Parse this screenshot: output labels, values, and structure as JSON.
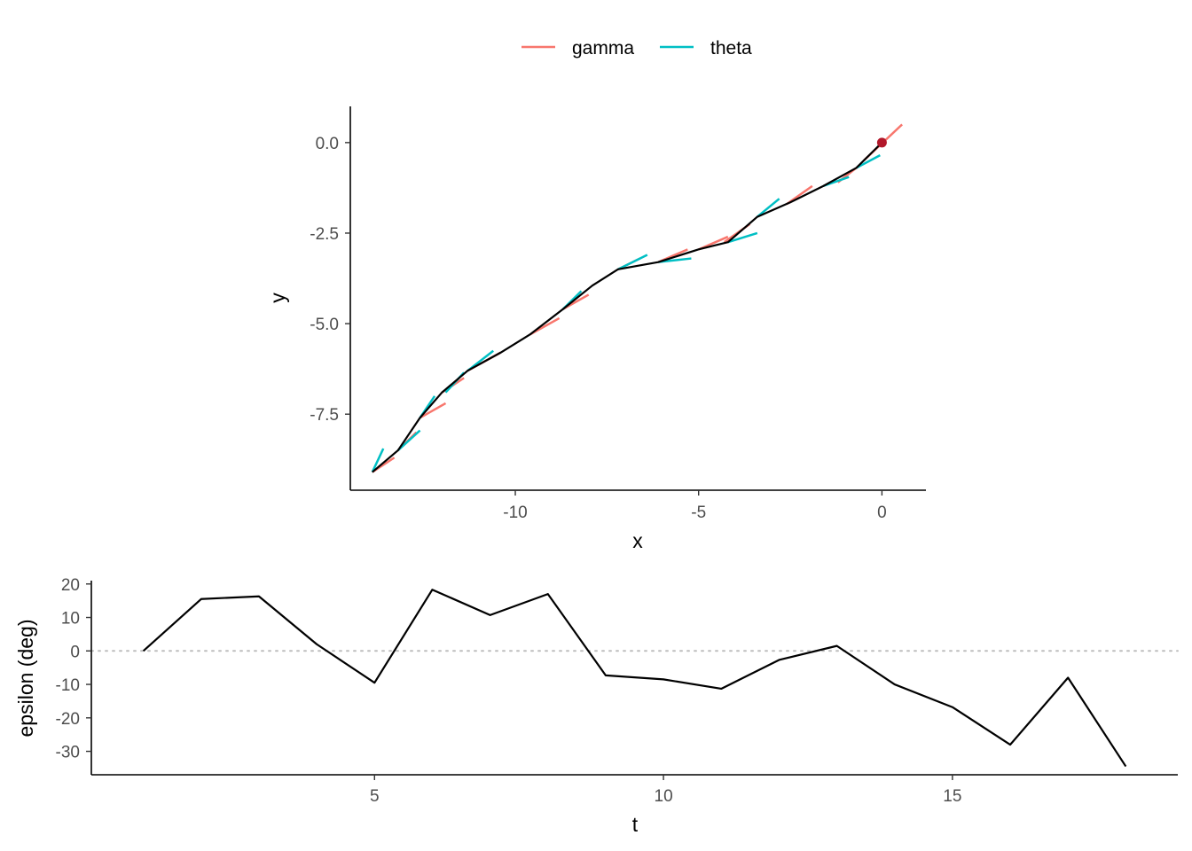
{
  "legend": {
    "placement": "top-center",
    "items": [
      {
        "label": "gamma",
        "color": "#F8766D"
      },
      {
        "label": "theta",
        "color": "#00BFC4"
      }
    ]
  },
  "chart_data": [
    {
      "type": "line",
      "title": "",
      "xlabel": "x",
      "ylabel": "y",
      "xlim": [
        -14.5,
        1.2
      ],
      "ylim": [
        -9.6,
        1.0
      ],
      "x_ticks": [
        -10,
        -5,
        0
      ],
      "x_tick_labels": [
        "-10",
        "-5",
        "0"
      ],
      "y_ticks": [
        0,
        -2.5,
        -5,
        -7.5
      ],
      "y_tick_labels": [
        "0.0",
        "-2.5",
        "-5.0",
        "-7.5"
      ],
      "grid": false,
      "path_color": "#000000",
      "path": {
        "x": [
          0,
          -0.7,
          -1.6,
          -2.5,
          -3.4,
          -4.2,
          -5.0,
          -6.1,
          -7.2,
          -7.9,
          -8.7,
          -9.6,
          -10.4,
          -11.3,
          -12.0,
          -12.6,
          -13.2,
          -13.9
        ],
        "y": [
          0,
          -0.7,
          -1.2,
          -1.65,
          -2.05,
          -2.75,
          -2.95,
          -3.3,
          -3.5,
          -3.95,
          -4.6,
          -5.3,
          -5.8,
          -6.3,
          -6.9,
          -7.6,
          -8.5,
          -9.1
        ]
      },
      "start_point": {
        "x": 0,
        "y": 0,
        "color": "#B2182B"
      },
      "gamma_segments": [
        {
          "x1": -0.5,
          "y1": -0.5,
          "x2": 0.55,
          "y2": 0.5
        },
        {
          "x1": -1.2,
          "y1": -1.1,
          "x2": -0.7,
          "y2": -0.7
        },
        {
          "x1": -2.6,
          "y1": -1.7,
          "x2": -1.9,
          "y2": -1.2
        },
        {
          "x1": -4.3,
          "y1": -2.75,
          "x2": -3.6,
          "y2": -2.25
        },
        {
          "x1": -5.0,
          "y1": -2.95,
          "x2": -4.2,
          "y2": -2.6
        },
        {
          "x1": -6.1,
          "y1": -3.3,
          "x2": -5.3,
          "y2": -2.95
        },
        {
          "x1": -7.2,
          "y1": -3.5,
          "x2": -6.6,
          "y2": -3.2
        },
        {
          "x1": -8.7,
          "y1": -4.6,
          "x2": -8.0,
          "y2": -4.2
        },
        {
          "x1": -9.6,
          "y1": -5.3,
          "x2": -8.8,
          "y2": -4.85
        },
        {
          "x1": -11.3,
          "y1": -6.3,
          "x2": -10.4,
          "y2": -5.8
        },
        {
          "x1": -12.0,
          "y1": -6.9,
          "x2": -11.4,
          "y2": -6.5
        },
        {
          "x1": -12.6,
          "y1": -7.6,
          "x2": -11.9,
          "y2": -7.2
        },
        {
          "x1": -13.2,
          "y1": -8.5,
          "x2": -12.7,
          "y2": -8.0
        },
        {
          "x1": -13.9,
          "y1": -9.1,
          "x2": -13.3,
          "y2": -8.7
        }
      ],
      "theta_segments": [
        {
          "x1": -0.7,
          "y1": -0.7,
          "x2": -0.05,
          "y2": -0.35
        },
        {
          "x1": -1.6,
          "y1": -1.2,
          "x2": -0.9,
          "y2": -0.95
        },
        {
          "x1": -3.4,
          "y1": -2.05,
          "x2": -2.8,
          "y2": -1.55
        },
        {
          "x1": -4.2,
          "y1": -2.75,
          "x2": -3.4,
          "y2": -2.5
        },
        {
          "x1": -6.1,
          "y1": -3.3,
          "x2": -5.2,
          "y2": -3.2
        },
        {
          "x1": -7.2,
          "y1": -3.5,
          "x2": -6.4,
          "y2": -3.1
        },
        {
          "x1": -8.7,
          "y1": -4.6,
          "x2": -8.2,
          "y2": -4.1
        },
        {
          "x1": -11.3,
          "y1": -6.3,
          "x2": -10.6,
          "y2": -5.75
        },
        {
          "x1": -11.9,
          "y1": -6.9,
          "x2": -11.4,
          "y2": -6.35
        },
        {
          "x1": -12.6,
          "y1": -7.6,
          "x2": -12.2,
          "y2": -7.0
        },
        {
          "x1": -13.2,
          "y1": -8.5,
          "x2": -12.6,
          "y2": -7.95
        },
        {
          "x1": -13.9,
          "y1": -9.1,
          "x2": -13.6,
          "y2": -8.45
        }
      ]
    },
    {
      "type": "line",
      "title": "",
      "xlabel": "t",
      "ylabel": "epsilon (deg)",
      "xlim": [
        0.1,
        18.9
      ],
      "ylim": [
        -37,
        21
      ],
      "x_ticks": [
        5,
        10,
        15
      ],
      "x_tick_labels": [
        "5",
        "10",
        "15"
      ],
      "y_ticks": [
        20,
        10,
        0,
        -10,
        -20,
        -30
      ],
      "y_tick_labels": [
        "20",
        "10",
        "0",
        "-10",
        "-20",
        "-30"
      ],
      "grid": false,
      "reference_line": {
        "y": 0,
        "style": "dotted",
        "color": "#BEBEBE"
      },
      "series": [
        {
          "line_color": "#000000",
          "x": [
            1,
            2,
            3,
            4,
            5,
            6,
            7,
            8,
            9,
            10,
            11,
            12,
            13,
            14,
            15,
            16,
            17,
            18
          ],
          "y": [
            0,
            15.5,
            16.3,
            2.0,
            -9.5,
            18.3,
            10.7,
            17.0,
            -7.3,
            -8.5,
            -11.3,
            -2.7,
            1.5,
            -10.0,
            -16.8,
            -28.0,
            -8.0,
            -34.5
          ]
        }
      ]
    }
  ]
}
